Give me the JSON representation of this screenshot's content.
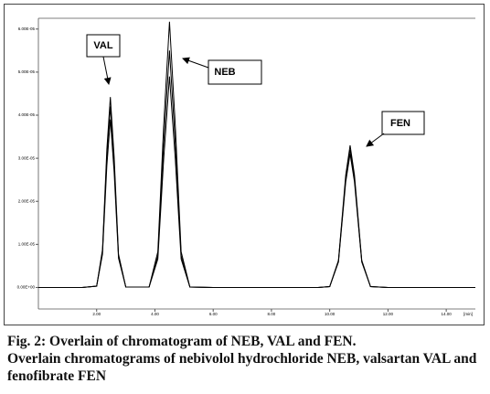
{
  "chart_data": {
    "type": "line",
    "annotations": [
      "VAL",
      "NEB",
      "FEN"
    ],
    "x_label": "[min]",
    "x": [
      0,
      1.5,
      2.0,
      2.2,
      2.35,
      2.47,
      2.6,
      2.75,
      3.0,
      3.8,
      4.1,
      4.3,
      4.5,
      4.7,
      4.9,
      5.2,
      6.0,
      9.6,
      10.0,
      10.3,
      10.55,
      10.7,
      10.85,
      11.1,
      11.4,
      12,
      15
    ],
    "series": [
      {
        "color": "#000000",
        "values": [
          0,
          0,
          3e-07,
          8.8e-06,
          3.21e-05,
          4.42e-05,
          3.04e-05,
          7.7e-06,
          1e-07,
          1e-07,
          8.3e-06,
          3.75e-05,
          6.17e-05,
          3.75e-05,
          8.3e-06,
          1e-07,
          0,
          0,
          2e-07,
          6.3e-06,
          2.61e-05,
          3.3e-05,
          2.61e-05,
          6.3e-06,
          2e-07,
          0,
          0
        ]
      },
      {
        "color": "#000000",
        "values": [
          0,
          0,
          3e-07,
          8.3e-06,
          3.05e-05,
          4.2e-05,
          2.89e-05,
          7.4e-06,
          1e-07,
          1e-07,
          7.4e-06,
          3.34e-05,
          5.5e-05,
          3.34e-05,
          7.4e-06,
          1e-07,
          0,
          0,
          2e-07,
          6.1e-06,
          2.53e-05,
          3.2e-05,
          2.53e-05,
          6.1e-06,
          2e-07,
          0,
          0
        ]
      },
      {
        "color": "#000000",
        "values": [
          0,
          0,
          3e-07,
          7.7e-06,
          2.83e-05,
          3.9e-05,
          2.68e-05,
          6.8e-06,
          1e-07,
          1e-07,
          6.6e-06,
          2.97e-05,
          4.9e-05,
          2.97e-05,
          6.6e-06,
          1e-07,
          0,
          0,
          2e-07,
          5.9e-06,
          2.45e-05,
          3.1e-05,
          2.45e-05,
          5.9e-06,
          2e-07,
          0,
          0
        ]
      }
    ],
    "xlim": [
      0,
      15
    ],
    "xticks": [
      {
        "value": 2,
        "label": "2.00"
      },
      {
        "value": 4,
        "label": "4.00"
      },
      {
        "value": 6,
        "label": "6.00"
      },
      {
        "value": 8,
        "label": "8.00"
      },
      {
        "value": 10,
        "label": "10.00"
      },
      {
        "value": 12,
        "label": "12.00"
      },
      {
        "value": 14,
        "label": "14.00"
      }
    ],
    "ylim": [
      -5e-06,
      6.25e-05
    ],
    "yticks": [
      {
        "value": 0,
        "label": "0.00E+00"
      },
      {
        "value": 1e-05,
        "label": "1.00E-05"
      },
      {
        "value": 2e-05,
        "label": "2.00E-05"
      },
      {
        "value": 3e-05,
        "label": "3.00E-05"
      },
      {
        "value": 4e-05,
        "label": "4.00E-05"
      },
      {
        "value": 5e-05,
        "label": "5.00E-05"
      },
      {
        "value": 6e-05,
        "label": "6.00E-05"
      }
    ]
  },
  "caption": {
    "title": "Fig. 2: Overlain of chromatogram of NEB, VAL and FEN.",
    "text": "Overlain chromatograms of nebivolol hydrochloride NEB, valsartan VAL and fenofibrate FEN"
  }
}
